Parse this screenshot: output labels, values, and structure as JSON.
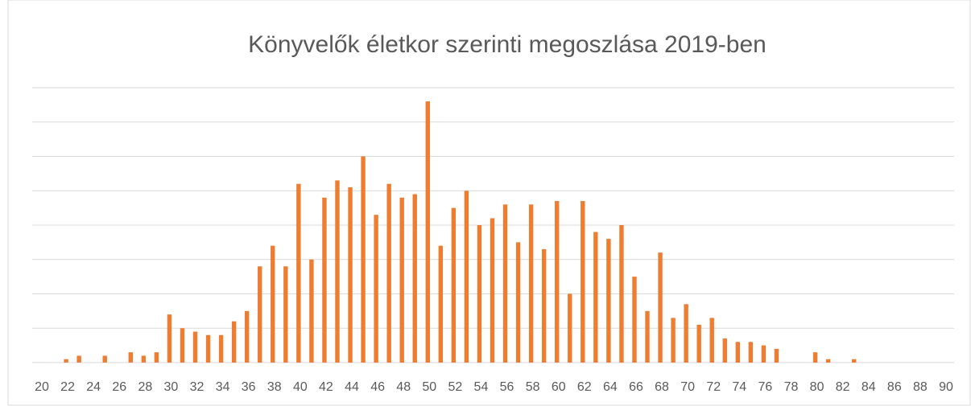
{
  "chart_data": {
    "type": "bar",
    "title": "Könyvelők életkor szerinti megoszlása 2019-ben",
    "categories": [
      20,
      null,
      22,
      null,
      24,
      null,
      26,
      null,
      28,
      null,
      30,
      null,
      32,
      null,
      34,
      null,
      36,
      null,
      38,
      null,
      40,
      null,
      42,
      null,
      44,
      null,
      46,
      null,
      48,
      null,
      50,
      null,
      52,
      null,
      54,
      null,
      56,
      null,
      58,
      null,
      60,
      null,
      62,
      null,
      64,
      null,
      66,
      null,
      68,
      null,
      70,
      null,
      72,
      null,
      74,
      null,
      76,
      null,
      78,
      null,
      80,
      null,
      82,
      null,
      84,
      null,
      86,
      null,
      88,
      null,
      90
    ],
    "values": [
      0,
      0,
      0.1,
      0.2,
      0,
      0.2,
      0,
      0.3,
      0.2,
      0.3,
      1.4,
      1.0,
      0.9,
      0.8,
      0.8,
      1.2,
      1.5,
      2.8,
      3.4,
      2.8,
      5.2,
      3.0,
      4.8,
      5.3,
      5.1,
      6.0,
      4.3,
      5.2,
      4.8,
      4.9,
      7.6,
      3.4,
      4.5,
      5.0,
      4.0,
      4.2,
      4.6,
      3.5,
      4.6,
      3.3,
      4.7,
      2.0,
      4.7,
      3.8,
      3.6,
      4.0,
      2.5,
      1.5,
      3.2,
      1.3,
      1.7,
      1.1,
      1.3,
      0.7,
      0.6,
      0.6,
      0.5,
      0.4,
      0,
      0,
      0.3,
      0.1,
      0,
      0.1,
      0,
      0,
      0,
      0,
      0,
      0,
      0
    ],
    "color": "#ed7d31",
    "ylim": [
      0,
      8
    ],
    "yticks": [
      0,
      1,
      2,
      3,
      4,
      5,
      6,
      7,
      8
    ],
    "grid": true
  }
}
